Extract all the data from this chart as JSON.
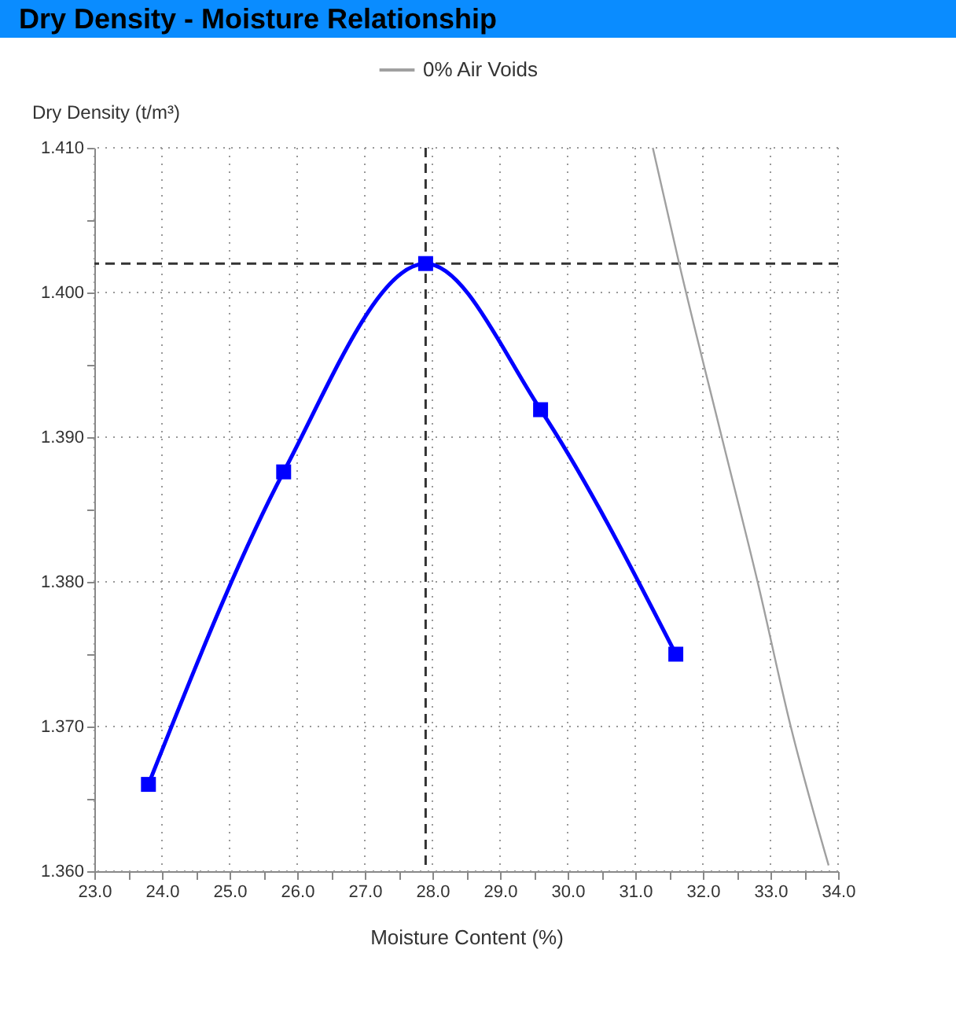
{
  "chart_data": {
    "type": "line",
    "title": "Dry Density - Moisture Relationship",
    "xlabel": "Moisture Content (%)",
    "ylabel": "Dry Density (t/m³)",
    "series": [
      {
        "color": "#0000ff",
        "marker": "square",
        "x": [
          23.8,
          25.8,
          27.9,
          29.6,
          31.6
        ],
        "values": [
          1.366,
          1.3876,
          1.402,
          1.3919,
          1.375
        ]
      },
      {
        "name": "0% Air Voids",
        "color": "#a0a0a0",
        "marker": "none",
        "x": [
          31.26,
          31.65,
          32.28,
          32.81,
          33.3,
          33.86
        ],
        "values": [
          1.41,
          1.402,
          1.39,
          1.38,
          1.37,
          1.3604
        ]
      }
    ],
    "xlim": [
      23,
      34
    ],
    "ylim": [
      1.36,
      1.41
    ],
    "xticks": [
      {
        "value": 23,
        "label": "23.0"
      },
      {
        "value": 23.5,
        "label": null
      },
      {
        "value": 24,
        "label": "24.0"
      },
      {
        "value": 24.5,
        "label": null
      },
      {
        "value": 25,
        "label": "25.0"
      },
      {
        "value": 25.5,
        "label": null
      },
      {
        "value": 26,
        "label": "26.0"
      },
      {
        "value": 26.5,
        "label": null
      },
      {
        "value": 27,
        "label": "27.0"
      },
      {
        "value": 27.5,
        "label": null
      },
      {
        "value": 28,
        "label": "28.0"
      },
      {
        "value": 28.5,
        "label": null
      },
      {
        "value": 29,
        "label": "29.0"
      },
      {
        "value": 29.5,
        "label": null
      },
      {
        "value": 30,
        "label": "30.0"
      },
      {
        "value": 30.5,
        "label": null
      },
      {
        "value": 31,
        "label": "31.0"
      },
      {
        "value": 31.5,
        "label": null
      },
      {
        "value": 32,
        "label": "32.0"
      },
      {
        "value": 32.5,
        "label": null
      },
      {
        "value": 33,
        "label": "33.0"
      },
      {
        "value": 33.5,
        "label": null
      },
      {
        "value": 34,
        "label": "34.0"
      }
    ],
    "yticks": [
      {
        "value": 1.36,
        "label": "1.360"
      },
      {
        "value": 1.365,
        "label": null
      },
      {
        "value": 1.37,
        "label": "1.370"
      },
      {
        "value": 1.375,
        "label": null
      },
      {
        "value": 1.38,
        "label": "1.380"
      },
      {
        "value": 1.385,
        "label": null
      },
      {
        "value": 1.39,
        "label": "1.390"
      },
      {
        "value": 1.395,
        "label": null
      },
      {
        "value": 1.4,
        "label": "1.400"
      },
      {
        "value": 1.405,
        "label": null
      },
      {
        "value": 1.41,
        "label": "1.410"
      }
    ],
    "ref_lines": [
      {
        "axis": "y",
        "value": 1.402,
        "color": "#333333",
        "line_style": "dashed"
      },
      {
        "axis": "x",
        "value": 27.9,
        "color": "#333333",
        "line_style": "dashed"
      }
    ],
    "grid": true,
    "legend": "top"
  }
}
